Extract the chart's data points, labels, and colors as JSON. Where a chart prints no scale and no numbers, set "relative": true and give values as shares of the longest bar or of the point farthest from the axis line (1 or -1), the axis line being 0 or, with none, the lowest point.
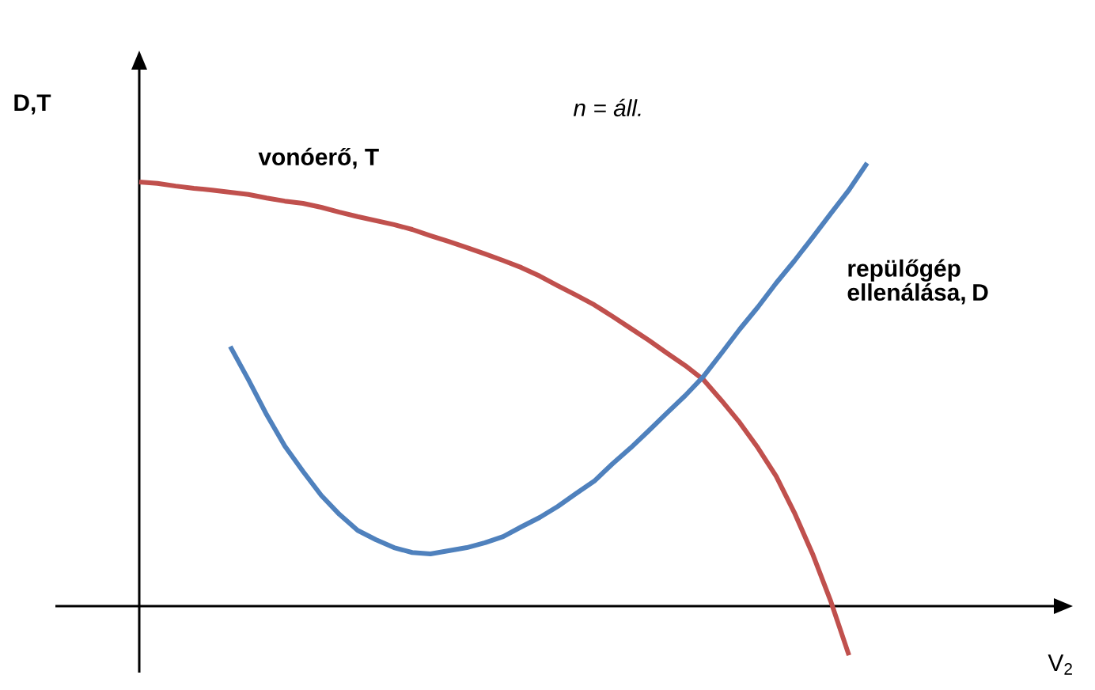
{
  "chart_data": {
    "type": "line",
    "relative": true,
    "ylabel": "D,T",
    "annotations": [
      "n = áll.",
      "V$_{2}$"
    ],
    "categories": [
      null,
      null,
      null,
      null,
      null,
      null,
      null,
      null,
      null,
      null,
      null,
      null,
      null,
      null,
      null,
      null,
      null,
      null,
      null,
      null,
      null,
      null,
      null,
      null,
      null,
      null,
      null,
      null,
      null,
      null,
      null,
      null,
      null,
      null,
      null,
      null,
      null,
      null,
      null,
      null,
      null
    ],
    "series": [
      {
        "name": "vonóerő, T",
        "color": "#c0504d",
        "values": [
          0.957,
          0.954,
          0.948,
          0.943,
          0.939,
          0.934,
          0.929,
          0.921,
          0.914,
          0.909,
          0.9,
          0.889,
          0.879,
          0.87,
          0.861,
          0.85,
          0.836,
          0.823,
          0.809,
          0.795,
          0.78,
          0.764,
          0.745,
          0.723,
          0.702,
          0.68,
          0.654,
          0.627,
          0.6,
          0.571,
          0.543,
          0.511,
          0.464,
          0.414,
          0.357,
          0.293,
          0.211,
          0.118,
          0.011,
          -0.111,
          null
        ]
      },
      {
        "name": "repülőgép ellenálása, D",
        "color": "#4f81bd",
        "values": [
          null,
          null,
          null,
          null,
          null,
          0.586,
          0.511,
          0.432,
          0.361,
          0.304,
          0.25,
          0.207,
          0.171,
          0.15,
          0.132,
          0.121,
          0.118,
          0.125,
          0.132,
          0.143,
          0.157,
          0.179,
          0.2,
          0.225,
          0.254,
          0.282,
          0.321,
          0.357,
          0.396,
          0.436,
          0.475,
          0.518,
          0.571,
          0.625,
          0.675,
          0.729,
          0.779,
          0.832,
          0.886,
          0.939,
          1
        ]
      }
    ],
    "marker": "none",
    "line_style": "solid"
  }
}
